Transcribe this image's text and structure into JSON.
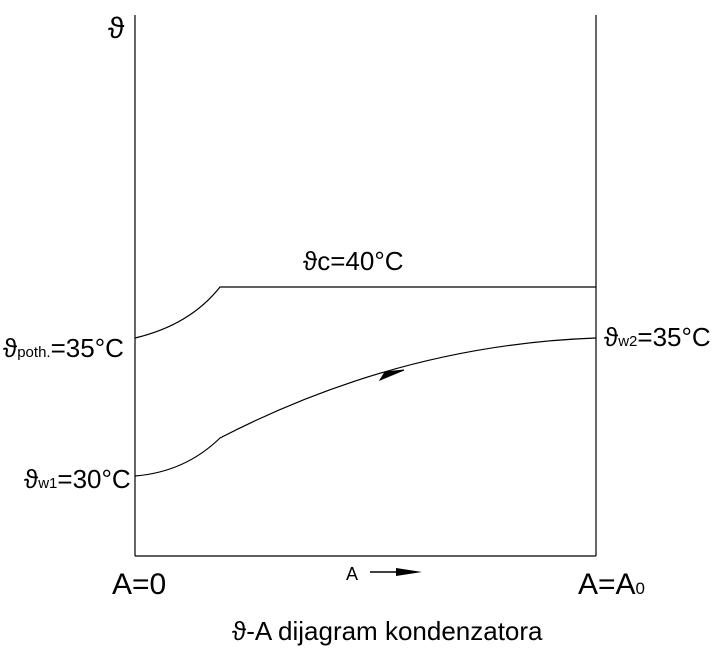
{
  "diagram": {
    "y_axis_symbol": "ϑ",
    "condensation_label": "ϑc=40°C",
    "left_start_label": {
      "main": "ϑ",
      "sub": "poth.",
      "tail": "=35°C"
    },
    "water_inlet_label": {
      "main": "ϑ",
      "sub": "w1",
      "tail": "=30°C"
    },
    "water_outlet_label": {
      "main": "ϑ",
      "sub": "w2",
      "tail": "=35°C"
    },
    "x_start_label": "A=0",
    "x_axis_label": "A",
    "x_end_label": {
      "main": "A=A",
      "sub": "0"
    },
    "caption": "ϑ-A dijagram kondenzatora"
  }
}
